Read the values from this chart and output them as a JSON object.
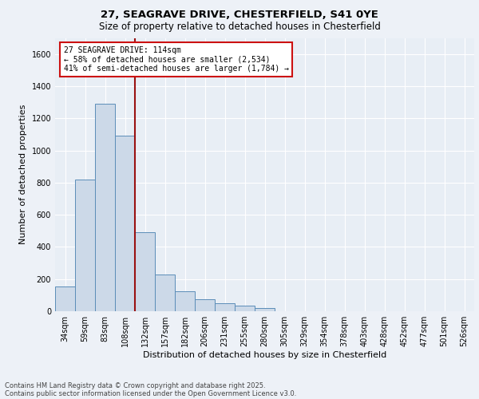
{
  "title_line1": "27, SEAGRAVE DRIVE, CHESTERFIELD, S41 0YE",
  "title_line2": "Size of property relative to detached houses in Chesterfield",
  "xlabel": "Distribution of detached houses by size in Chesterfield",
  "ylabel": "Number of detached properties",
  "categories": [
    "34sqm",
    "59sqm",
    "83sqm",
    "108sqm",
    "132sqm",
    "157sqm",
    "182sqm",
    "206sqm",
    "231sqm",
    "255sqm",
    "280sqm",
    "305sqm",
    "329sqm",
    "354sqm",
    "378sqm",
    "403sqm",
    "428sqm",
    "452sqm",
    "477sqm",
    "501sqm",
    "526sqm"
  ],
  "values": [
    155,
    820,
    1290,
    1090,
    490,
    230,
    125,
    75,
    50,
    35,
    20,
    0,
    0,
    0,
    0,
    0,
    0,
    0,
    0,
    0,
    0
  ],
  "bar_color": "#ccd9e8",
  "bar_edge_color": "#5b8db8",
  "vline_color": "#991111",
  "annotation_text": "27 SEAGRAVE DRIVE: 114sqm\n← 58% of detached houses are smaller (2,534)\n41% of semi-detached houses are larger (1,784) →",
  "annotation_box_color": "#ffffff",
  "annotation_box_edge": "#cc1111",
  "ylim": [
    0,
    1700
  ],
  "yticks": [
    0,
    200,
    400,
    600,
    800,
    1000,
    1200,
    1400,
    1600
  ],
  "footer1": "Contains HM Land Registry data © Crown copyright and database right 2025.",
  "footer2": "Contains public sector information licensed under the Open Government Licence v3.0.",
  "bg_color": "#edf1f7",
  "plot_bg_color": "#e8eef5",
  "grid_color": "#ffffff",
  "title1_fontsize": 9.5,
  "title2_fontsize": 8.5,
  "tick_fontsize": 7,
  "axis_label_fontsize": 8,
  "annotation_fontsize": 7,
  "footer_fontsize": 6
}
